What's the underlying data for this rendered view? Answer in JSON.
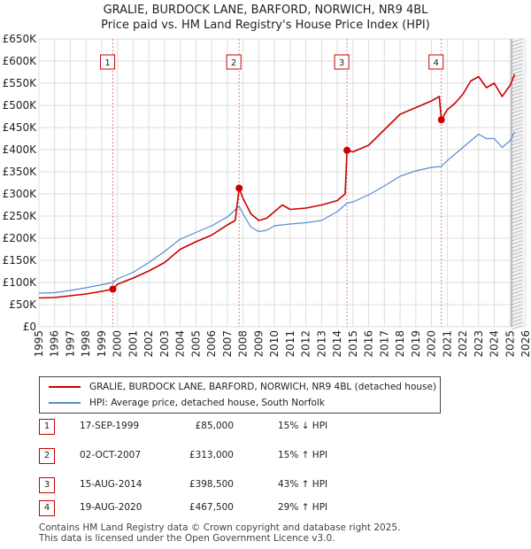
{
  "title_line1": "GRALIE, BURDOCK LANE, BARFORD, NORWICH, NR9 4BL",
  "title_line2": "Price paid vs. HM Land Registry's House Price Index (HPI)",
  "legend": {
    "property": "GRALIE, BURDOCK LANE, BARFORD, NORWICH, NR9 4BL (detached house)",
    "hpi": "HPI: Average price, detached house, South Norfolk"
  },
  "colors": {
    "property": "#cc0000",
    "hpi": "#5a8ccc",
    "grid": "#dddddd",
    "sale_line": "#e08080"
  },
  "sales": [
    {
      "num": "1",
      "date": "17-SEP-1999",
      "price": "£85,000",
      "hpi": "15% ↓ HPI"
    },
    {
      "num": "2",
      "date": "02-OCT-2007",
      "price": "£313,000",
      "hpi": "15% ↑ HPI"
    },
    {
      "num": "3",
      "date": "15-AUG-2014",
      "price": "£398,500",
      "hpi": "43% ↑ HPI"
    },
    {
      "num": "4",
      "date": "19-AUG-2020",
      "price": "£467,500",
      "hpi": "29% ↑ HPI"
    }
  ],
  "footer_line1": "Contains HM Land Registry data © Crown copyright and database right 2025.",
  "footer_line2": "This data is licensed under the Open Government Licence v3.0.",
  "chart_data": {
    "type": "line",
    "title": "GRALIE, BURDOCK LANE, BARFORD, NORWICH, NR9 4BL Price paid vs. HM Land Registry's House Price Index (HPI)",
    "xlabel": "",
    "ylabel": "",
    "xlim": [
      1995,
      2026
    ],
    "ylim": [
      0,
      650000
    ],
    "y_ticks": [
      0,
      50000,
      100000,
      150000,
      200000,
      250000,
      300000,
      350000,
      400000,
      450000,
      500000,
      550000,
      600000,
      650000
    ],
    "y_tick_labels": [
      "£0",
      "£50K",
      "£100K",
      "£150K",
      "£200K",
      "£250K",
      "£300K",
      "£350K",
      "£400K",
      "£450K",
      "£500K",
      "£550K",
      "£600K",
      "£650K"
    ],
    "x_ticks": [
      1995,
      1996,
      1997,
      1998,
      1999,
      2000,
      2001,
      2002,
      2003,
      2004,
      2005,
      2006,
      2007,
      2008,
      2009,
      2010,
      2011,
      2012,
      2013,
      2014,
      2015,
      2016,
      2017,
      2018,
      2019,
      2020,
      2021,
      2022,
      2023,
      2024,
      2025,
      2026
    ],
    "grid": true,
    "forecast_start": 2025.1,
    "series": [
      {
        "name": "GRALIE, BURDOCK LANE, BARFORD, NORWICH, NR9 4BL (detached house)",
        "x": [
          1995.0,
          1996.0,
          1997.0,
          1998.0,
          1999.0,
          1999.71,
          2000.0,
          2001.0,
          2002.0,
          2003.0,
          2004.0,
          2005.0,
          2006.0,
          2007.0,
          2007.5,
          2007.75,
          2008.0,
          2008.5,
          2009.0,
          2009.5,
          2010.0,
          2010.5,
          2011.0,
          2012.0,
          2013.0,
          2014.0,
          2014.5,
          2014.62,
          2015.0,
          2016.0,
          2017.0,
          2018.0,
          2019.0,
          2020.0,
          2020.5,
          2020.63,
          2021.0,
          2021.5,
          2022.0,
          2022.5,
          2023.0,
          2023.5,
          2024.0,
          2024.5,
          2025.0,
          2025.3
        ],
        "y": [
          65000,
          66000,
          70000,
          74000,
          80000,
          85000,
          96000,
          110000,
          126000,
          145000,
          175000,
          192000,
          207000,
          230000,
          240000,
          313000,
          290000,
          255000,
          240000,
          245000,
          260000,
          275000,
          265000,
          268000,
          275000,
          285000,
          300000,
          398500,
          395000,
          410000,
          445000,
          480000,
          495000,
          510000,
          520000,
          467500,
          490000,
          505000,
          525000,
          555000,
          565000,
          540000,
          550000,
          520000,
          545000,
          570000
        ]
      },
      {
        "name": "HPI: Average price, detached house, South Norfolk",
        "x": [
          1995.0,
          1996.0,
          1997.0,
          1998.0,
          1999.0,
          1999.71,
          2000.0,
          2001.0,
          2002.0,
          2003.0,
          2004.0,
          2005.0,
          2006.0,
          2007.0,
          2007.75,
          2008.0,
          2008.5,
          2009.0,
          2009.5,
          2010.0,
          2011.0,
          2012.0,
          2013.0,
          2014.0,
          2014.62,
          2015.0,
          2016.0,
          2017.0,
          2018.0,
          2019.0,
          2020.0,
          2020.63,
          2021.0,
          2021.5,
          2022.0,
          2022.5,
          2023.0,
          2023.5,
          2024.0,
          2024.5,
          2025.0,
          2025.3
        ],
        "y": [
          76000,
          77000,
          82000,
          88000,
          95000,
          100000,
          108000,
          123000,
          145000,
          170000,
          198000,
          213000,
          228000,
          248000,
          272000,
          255000,
          225000,
          215000,
          218000,
          228000,
          232000,
          235000,
          240000,
          260000,
          279000,
          282000,
          298000,
          318000,
          340000,
          352000,
          360000,
          362000,
          375000,
          390000,
          405000,
          420000,
          435000,
          425000,
          425000,
          405000,
          420000,
          440000
        ]
      }
    ],
    "annotations": [
      {
        "label": "1",
        "x": 1999.71,
        "y": 85000
      },
      {
        "label": "2",
        "x": 2007.75,
        "y": 313000
      },
      {
        "label": "3",
        "x": 2014.62,
        "y": 398500
      },
      {
        "label": "4",
        "x": 2020.63,
        "y": 467500
      }
    ]
  }
}
